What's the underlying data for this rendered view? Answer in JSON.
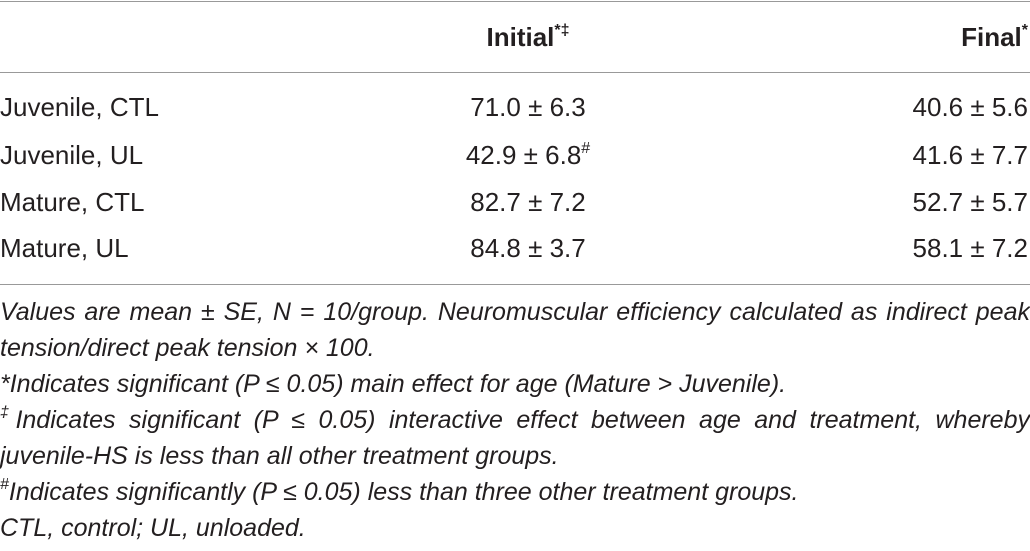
{
  "table": {
    "header": [
      {
        "text": "Initial",
        "sup": "*‡"
      },
      {
        "text": "Final",
        "sup": "*"
      }
    ],
    "rows": [
      [
        "Juvenile, CTL",
        "71.0 ± 6.3",
        "40.6 ± 5.6"
      ],
      [
        "Juvenile, UL",
        {
          "text": "42.9 ± 6.8",
          "sup": "#"
        },
        "41.6 ± 7.7"
      ],
      [
        "Mature, CTL",
        "82.7 ± 7.2",
        "52.7 ± 5.7"
      ],
      [
        "Mature, UL",
        "84.8 ± 3.7",
        "58.1 ± 7.2"
      ]
    ],
    "notes": [
      {
        "text": "Values are mean ± SE, N = 10/group. Neuromuscular efficiency calculated as indirect peak tension/direct peak tension × 100."
      },
      {
        "text": "*Indicates significant (P ≤ 0.05) main effect for age (Mature > Juvenile)."
      },
      {
        "mark": "‡",
        "text": "Indicates significant (P ≤ 0.05) interactive effect between age and treatment, whereby juvenile-HS is less than all other treatment groups."
      },
      {
        "mark": "#",
        "text": "Indicates significantly (P ≤ 0.05) less than three other treatment groups."
      },
      {
        "text": "CTL, control; UL, unloaded."
      }
    ]
  }
}
